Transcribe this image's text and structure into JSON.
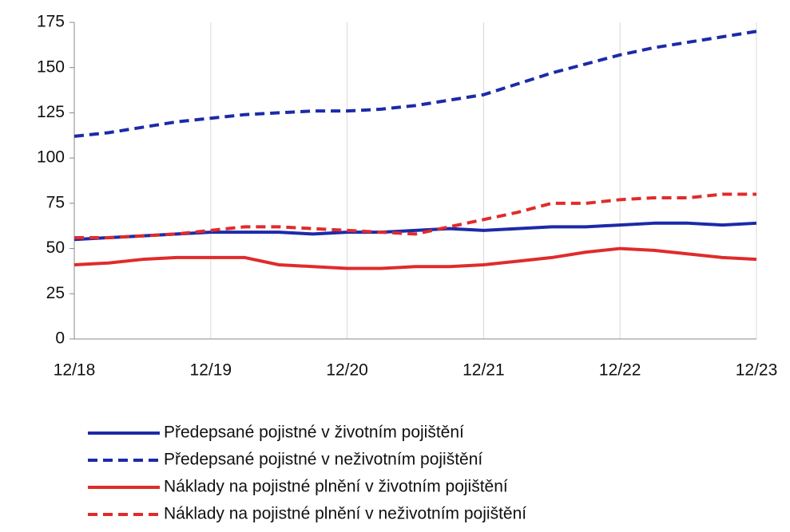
{
  "chart_data": {
    "type": "line",
    "categories": [
      "12/18",
      null,
      null,
      null,
      "12/19",
      null,
      null,
      null,
      "12/20",
      null,
      null,
      null,
      "12/21",
      null,
      null,
      null,
      "12/22",
      null,
      null,
      null,
      "12/23"
    ],
    "series": [
      {
        "name": "Předepsané pojistné v životním pojištění",
        "color": "#1c2aa8",
        "dashed": false,
        "values": [
          55,
          56,
          57,
          58,
          59,
          59,
          59,
          58,
          59,
          59,
          60,
          61,
          60,
          61,
          62,
          62,
          63,
          64,
          64,
          63,
          64
        ]
      },
      {
        "name": "Předepsané pojistné v neživotním pojištění",
        "color": "#1c2aa8",
        "dashed": true,
        "values": [
          112,
          114,
          117,
          120,
          122,
          124,
          125,
          126,
          126,
          127,
          129,
          132,
          135,
          141,
          147,
          152,
          157,
          161,
          164,
          167,
          170
        ]
      },
      {
        "name": "Náklady na pojistné plnění v životním pojištění",
        "color": "#e02b2b",
        "dashed": false,
        "values": [
          41,
          42,
          44,
          45,
          45,
          45,
          41,
          40,
          39,
          39,
          40,
          40,
          41,
          43,
          45,
          48,
          50,
          49,
          47,
          45,
          44
        ]
      },
      {
        "name": "Náklady na pojistné plnění v neživotním pojištění",
        "color": "#e02b2b",
        "dashed": true,
        "values": [
          56,
          56,
          57,
          58,
          60,
          62,
          62,
          61,
          60,
          59,
          58,
          62,
          66,
          70,
          75,
          75,
          77,
          78,
          78,
          80,
          80
        ]
      }
    ],
    "ylim": [
      0,
      175
    ],
    "yticks": [
      0,
      25,
      50,
      75,
      100,
      125,
      150,
      175
    ],
    "grid": true
  }
}
